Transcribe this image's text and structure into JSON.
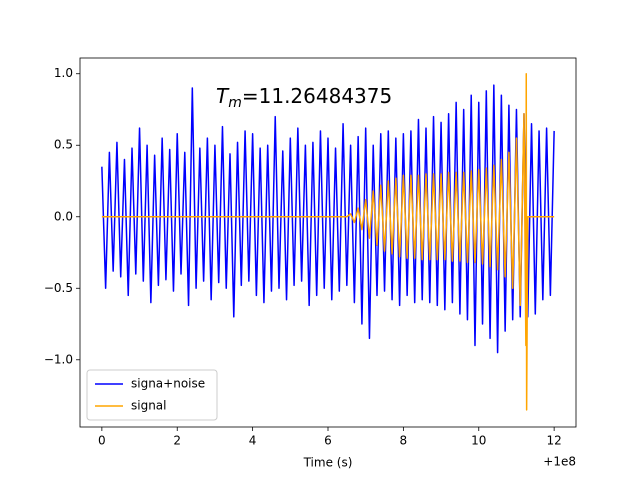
{
  "chart_data": {
    "type": "line",
    "annotation": {
      "symbol": "T",
      "subscript": "m",
      "text": "=11.26484375"
    },
    "xlabel": "Time (s)",
    "x_offset_label": "+1e8",
    "xlim": [
      -0.58,
      12.58
    ],
    "ylim": [
      -1.47,
      1.11
    ],
    "xticks": [
      0,
      2,
      4,
      6,
      8,
      10,
      12
    ],
    "yticks": [
      {
        "value": -1,
        "label": "−1.0"
      },
      {
        "value": -0.5,
        "label": "−0.5"
      },
      {
        "value": 0,
        "label": "0.0"
      },
      {
        "value": 0.5,
        "label": "0.5"
      },
      {
        "value": 1,
        "label": "1.0"
      }
    ],
    "legend": "lower left",
    "series": [
      {
        "name": "signa+noise",
        "color": "#0000ff",
        "x": [
          0,
          0.1,
          0.2,
          0.3,
          0.4,
          0.5,
          0.6,
          0.7,
          0.8,
          0.9,
          1,
          1.1,
          1.2,
          1.3,
          1.4,
          1.5,
          1.6,
          1.7,
          1.8,
          1.9,
          2,
          2.1,
          2.2,
          2.3,
          2.4,
          2.5,
          2.6,
          2.7,
          2.8,
          2.9,
          3,
          3.1,
          3.2,
          3.3,
          3.4,
          3.5,
          3.6,
          3.7,
          3.8,
          3.9,
          4,
          4.1,
          4.2,
          4.3,
          4.4,
          4.5,
          4.6,
          4.7,
          4.8,
          4.9,
          5,
          5.1,
          5.2,
          5.3,
          5.4,
          5.5,
          5.6,
          5.7,
          5.8,
          5.9,
          6,
          6.1,
          6.2,
          6.3,
          6.4,
          6.5,
          6.6,
          6.7,
          6.8,
          6.9,
          7,
          7.1,
          7.2,
          7.3,
          7.4,
          7.5,
          7.6,
          7.7,
          7.8,
          7.9,
          8,
          8.1,
          8.2,
          8.3,
          8.4,
          8.5,
          8.6,
          8.7,
          8.8,
          8.9,
          9,
          9.1,
          9.2,
          9.3,
          9.4,
          9.5,
          9.6,
          9.7,
          9.8,
          9.9,
          10,
          10.1,
          10.2,
          10.3,
          10.4,
          10.5,
          10.6,
          10.7,
          10.8,
          10.9,
          11,
          11.1,
          11.2,
          11.3,
          11.4,
          11.5,
          11.6,
          11.7,
          11.8,
          11.9,
          12
        ],
        "values": [
          0.35,
          -0.5,
          0.45,
          -0.38,
          0.52,
          -0.42,
          0.4,
          -0.55,
          0.48,
          -0.4,
          0.62,
          -0.45,
          0.5,
          -0.6,
          0.43,
          -0.48,
          0.55,
          -0.44,
          0.47,
          -0.52,
          0.58,
          -0.4,
          0.45,
          -0.62,
          0.9,
          -0.5,
          0.48,
          -0.45,
          0.55,
          -0.58,
          0.5,
          -0.46,
          0.63,
          -0.5,
          0.44,
          -0.7,
          0.52,
          -0.48,
          0.6,
          -0.45,
          0.58,
          -0.55,
          0.48,
          -0.6,
          0.5,
          -0.52,
          0.7,
          -0.5,
          0.46,
          -0.58,
          0.55,
          -0.48,
          0.62,
          -0.45,
          0.5,
          -0.62,
          0.52,
          -0.55,
          0.6,
          -0.5,
          0.55,
          -0.58,
          0.48,
          -0.52,
          0.65,
          -0.48,
          0.5,
          -0.6,
          0.56,
          -0.75,
          0.62,
          -0.85,
          0.5,
          -0.55,
          0.58,
          -0.52,
          0.6,
          -0.58,
          0.55,
          -0.62,
          0.58,
          -0.55,
          0.6,
          -0.6,
          0.68,
          -0.58,
          0.62,
          -0.6,
          0.7,
          -0.62,
          0.66,
          -0.65,
          0.72,
          -0.6,
          0.8,
          -0.68,
          0.75,
          -0.72,
          0.85,
          -0.9,
          0.8,
          -0.75,
          0.88,
          -0.85,
          0.92,
          -0.95,
          0.85,
          -0.8,
          0.78,
          -0.72,
          0.75,
          -0.7,
          0.72,
          -0.7,
          0.65,
          -0.68,
          0.6,
          -0.58,
          0.62,
          -0.55,
          0.6
        ]
      },
      {
        "name": "signal",
        "color": "#ffa500",
        "x": [
          0,
          6.5,
          6.6,
          6.7,
          6.8,
          6.9,
          7,
          7.1,
          7.2,
          7.3,
          7.4,
          7.5,
          7.6,
          7.7,
          7.8,
          7.9,
          8,
          8.1,
          8.2,
          8.3,
          8.4,
          8.5,
          8.6,
          8.7,
          8.8,
          8.9,
          9,
          9.1,
          9.2,
          9.3,
          9.4,
          9.5,
          9.6,
          9.7,
          9.8,
          9.9,
          10,
          10.1,
          10.2,
          10.3,
          10.4,
          10.5,
          10.6,
          10.7,
          10.8,
          10.9,
          11,
          11.1,
          11.2,
          11.25,
          11.26,
          11.27,
          11.3,
          12
        ],
        "values": [
          0,
          0,
          0.02,
          -0.04,
          0.06,
          -0.09,
          0.12,
          -0.15,
          0.18,
          -0.2,
          0.22,
          -0.24,
          0.25,
          -0.26,
          0.27,
          -0.28,
          0.29,
          -0.29,
          0.29,
          -0.29,
          0.29,
          -0.3,
          0.3,
          -0.3,
          0.3,
          -0.3,
          0.3,
          -0.3,
          0.31,
          -0.31,
          0.31,
          -0.31,
          0.31,
          -0.32,
          0.32,
          -0.32,
          0.33,
          -0.33,
          0.34,
          -0.35,
          0.36,
          -0.37,
          0.4,
          -0.42,
          0.45,
          -0.5,
          0.55,
          -0.62,
          0.72,
          -0.9,
          1,
          -1.35,
          0,
          0
        ]
      }
    ]
  }
}
